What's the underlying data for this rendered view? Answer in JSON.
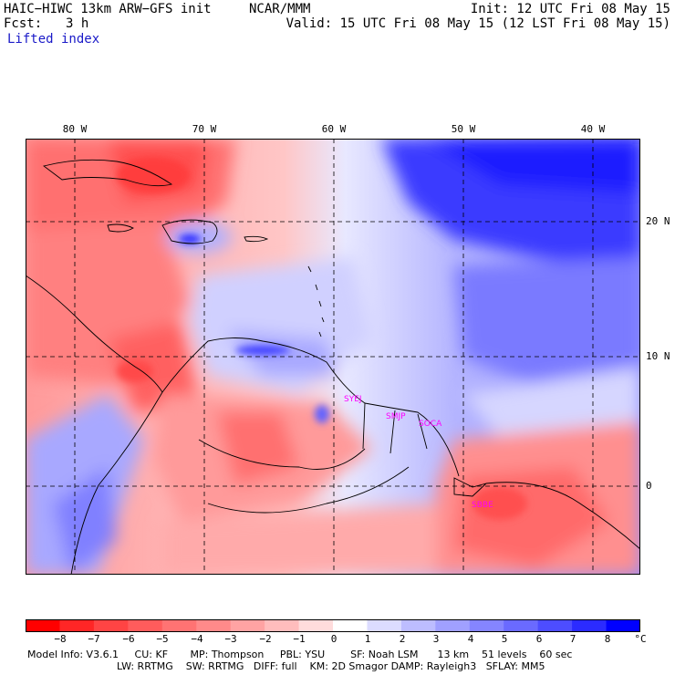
{
  "header": {
    "model_title": "HAIC−HIWC 13km ARW−GFS init",
    "center": "NCAR/MMM",
    "init": "Init: 12 UTC Fri 08 May 15",
    "fcst_label": "Fcst:",
    "fcst_value": "3 h",
    "valid": "Valid: 15 UTC Fri 08 May 15 (12 LST Fri 08 May 15)",
    "field_name": "Lifted index"
  },
  "map": {
    "lon_labels": [
      "80 W",
      "70 W",
      "60 W",
      "50 W",
      "40 W"
    ],
    "lat_labels": [
      "20 N",
      "10 N",
      "0"
    ],
    "stations": [
      "SYEJ",
      "SMJP",
      "SOCA",
      "SBBE"
    ]
  },
  "colorbar": {
    "ticks": [
      "−8",
      "−7",
      "−6",
      "−5",
      "−4",
      "−3",
      "−2",
      "−1",
      "0",
      "1",
      "2",
      "3",
      "4",
      "5",
      "6",
      "7",
      "8"
    ],
    "unit": "°C",
    "colors": [
      "#ff0000",
      "#ff2626",
      "#ff4444",
      "#ff5c5c",
      "#ff7373",
      "#ff8a8a",
      "#ffa3a3",
      "#ffbdbd",
      "#ffdcdc",
      "#ffffff",
      "#dcdcff",
      "#bdbdff",
      "#a0a0ff",
      "#8585ff",
      "#6a6aff",
      "#4d4dff",
      "#2b2bff",
      "#0000ff"
    ]
  },
  "footer": {
    "line1": "Model Info: V3.6.1     CU: KF       MP: Thompson     PBL: YSU        SF: Noah LSM      13 km    51 levels    60 sec",
    "line2": "LW: RRTMG    SW: RRTMG   DIFF: full    KM: 2D Smagor DAMP: Rayleigh3   SFLAY: MM5"
  }
}
